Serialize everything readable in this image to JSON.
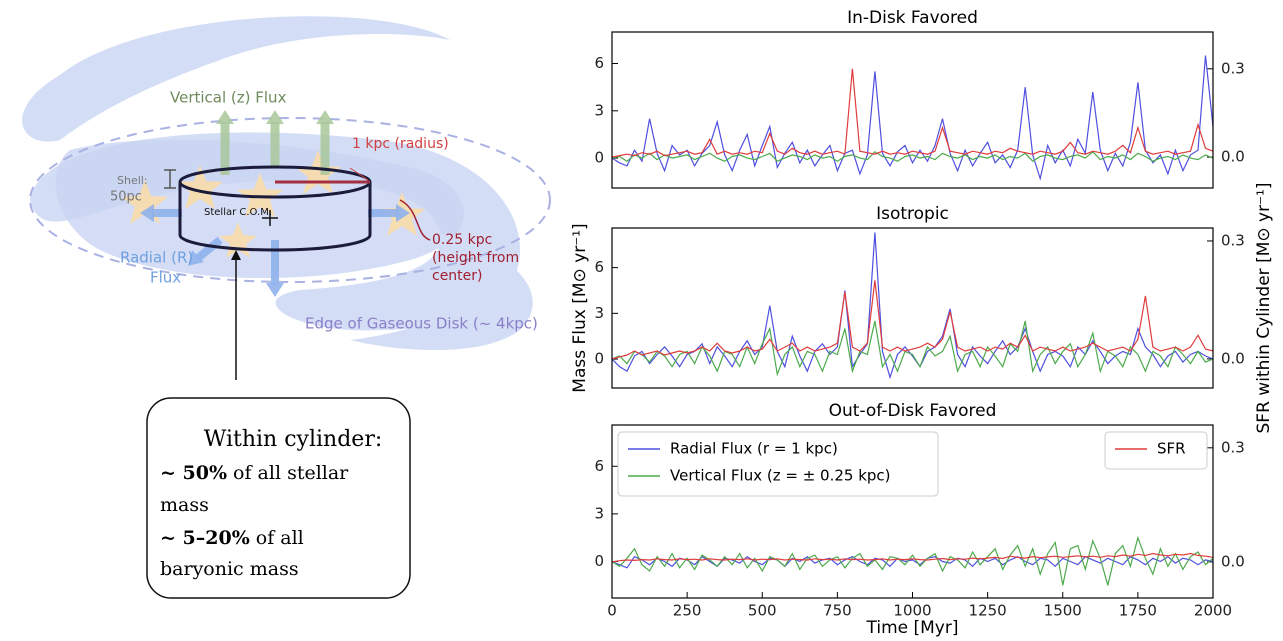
{
  "diagram": {
    "vertical_flux": "Vertical (z) Flux",
    "radius": "1 kpc (radius)",
    "shell": [
      "Shell:",
      "50pc"
    ],
    "com": "Stellar C.O.M.",
    "radial_flux": [
      "Radial (R)",
      "Flux"
    ],
    "height": [
      "0.25 kpc",
      "(height from",
      "center)"
    ],
    "edge": "Edge of Gaseous Disk (~ 4kpc)",
    "box": {
      "title": "Within cylinder:",
      "line1_bold": "~ 50%",
      "line1": "of all stellar",
      "line2": "mass",
      "line3_bold": "~ 5–20%",
      "line3": "of all",
      "line4": "baryonic mass"
    }
  },
  "chart_data": [
    {
      "type": "line",
      "title": "In-Disk Favored",
      "x": [
        0,
        25,
        50,
        75,
        100,
        125,
        150,
        175,
        200,
        225,
        250,
        275,
        300,
        325,
        350,
        375,
        400,
        425,
        450,
        475,
        500,
        525,
        550,
        575,
        600,
        625,
        650,
        675,
        700,
        725,
        750,
        775,
        800,
        825,
        850,
        875,
        900,
        925,
        950,
        975,
        1000,
        1025,
        1050,
        1075,
        1100,
        1125,
        1150,
        1175,
        1200,
        1225,
        1250,
        1275,
        1300,
        1325,
        1350,
        1375,
        1400,
        1425,
        1450,
        1475,
        1500,
        1525,
        1550,
        1575,
        1600,
        1625,
        1650,
        1675,
        1700,
        1725,
        1750,
        1775,
        1800,
        1825,
        1850,
        1875,
        1900,
        1925,
        1950,
        1975,
        2000
      ],
      "xlim": [
        0,
        2000
      ],
      "ylim": [
        -1.9,
        8.0
      ],
      "yticks": [
        0,
        3,
        6
      ],
      "y2lim": [
        -0.105,
        0.425
      ],
      "y2ticks": [
        {
          "value": 0,
          "label": "0.0"
        },
        0.3
      ],
      "series": [
        {
          "color": "#4f4fe0",
          "values": [
            0,
            -0.3,
            -0.5,
            0.5,
            -0.2,
            2.5,
            0.3,
            -0.8,
            0.8,
            0.2,
            0.5,
            -0.5,
            0.3,
            0.8,
            2.3,
            0.2,
            -0.8,
            0.5,
            1.5,
            -0.5,
            0.8,
            2.0,
            -0.6,
            0.3,
            1.0,
            -0.3,
            0.5,
            -0.5,
            0.2,
            0.8,
            -0.8,
            0.3,
            0.5,
            -1.0,
            0.2,
            5.5,
            0.3,
            -0.5,
            0.4,
            0.8,
            -0.3,
            0.5,
            -0.2,
            0.8,
            2.5,
            0.3,
            -0.8,
            0.5,
            -0.5,
            0.3,
            1.0,
            -0.3,
            0.2,
            -0.6,
            0.5,
            4.5,
            0.2,
            -1.3,
            0.8,
            -0.3,
            0.5,
            -0.5,
            1.2,
            0.3,
            4.2,
            0.5,
            -0.8,
            0.3,
            -0.5,
            1.0,
            4.8,
            0.5,
            -0.3,
            0.2,
            -1.0,
            0.5,
            -0.8,
            0.2,
            0.5,
            6.5,
            2.0
          ]
        },
        {
          "color": "#4caa4c",
          "values": [
            0,
            0.1,
            -0.2,
            0.2,
            0,
            0.3,
            -0.1,
            0.2,
            0,
            0.1,
            0.2,
            -0.1,
            0.1,
            0.3,
            0,
            -0.2,
            0.1,
            0.2,
            0,
            -0.1,
            0.1,
            0.3,
            -0.2,
            0,
            0.2,
            0.1,
            -0.1,
            0.2,
            0,
            0.1,
            -0.2,
            0.1,
            0.2,
            0,
            -0.1,
            0.4,
            0.1,
            0,
            -0.2,
            0.1,
            0.2,
            0,
            0.1,
            -0.1,
            0.3,
            0.1,
            0,
            0.2,
            -0.1,
            0.1,
            0,
            0.2,
            -0.1,
            0.1,
            0,
            0.3,
            -0.2,
            0.1,
            0.2,
            0,
            -0.1,
            0.1,
            0.2,
            0,
            0.4,
            -0.1,
            0.1,
            0,
            0.2,
            -0.1,
            0.3,
            0.1,
            -0.2,
            0,
            0.1,
            -0.1,
            0.2,
            0,
            -0.1,
            0.2,
            0
          ]
        },
        {
          "color": "#e03c3c",
          "axis": "y2",
          "values": [
            0,
            0.005,
            0.01,
            0.005,
            0.015,
            0.01,
            0.02,
            0.005,
            0.01,
            0.015,
            0.02,
            0.01,
            0.015,
            0.06,
            0.01,
            0.02,
            0.01,
            0.015,
            0.01,
            0.02,
            0.015,
            0.08,
            0.02,
            0.01,
            0.03,
            0.015,
            0.01,
            0.02,
            0.01,
            0.015,
            0.02,
            0.01,
            0.3,
            0.02,
            0.015,
            0.01,
            0.02,
            0.01,
            0.015,
            0.01,
            0.02,
            0.015,
            0.01,
            0.02,
            0.1,
            0.02,
            0.015,
            0.01,
            0.02,
            0.015,
            0.01,
            0.02,
            0.015,
            0.03,
            0.02,
            0.015,
            0.01,
            0.02,
            0.015,
            0.01,
            0.02,
            0.05,
            0.015,
            0.01,
            0.02,
            0.015,
            0.01,
            0.02,
            0.04,
            0.015,
            0.1,
            0.02,
            0.01,
            0.015,
            0.02,
            0.01,
            0.015,
            0.02,
            0.11,
            0.03,
            0.02
          ]
        }
      ]
    },
    {
      "type": "line",
      "title": "Isotropic",
      "ylabel": "Mass Flux [M⊙ yr⁻¹]",
      "y2label": "SFR within Cylinder [M⊙ yr⁻¹]",
      "x": [
        0,
        25,
        50,
        75,
        100,
        125,
        150,
        175,
        200,
        225,
        250,
        275,
        300,
        325,
        350,
        375,
        400,
        425,
        450,
        475,
        500,
        525,
        550,
        575,
        600,
        625,
        650,
        675,
        700,
        725,
        750,
        775,
        800,
        825,
        850,
        875,
        900,
        925,
        950,
        975,
        1000,
        1025,
        1050,
        1075,
        1100,
        1125,
        1150,
        1175,
        1200,
        1225,
        1250,
        1275,
        1300,
        1325,
        1350,
        1375,
        1400,
        1425,
        1450,
        1475,
        1500,
        1525,
        1550,
        1575,
        1600,
        1625,
        1650,
        1675,
        1700,
        1725,
        1750,
        1775,
        1800,
        1825,
        1850,
        1875,
        1900,
        1925,
        1950,
        1975,
        2000
      ],
      "xlim": [
        0,
        2000
      ],
      "ylim": [
        -1.9,
        8.6
      ],
      "yticks": [
        0,
        3,
        6
      ],
      "y2lim": [
        -0.074,
        0.333
      ],
      "y2ticks": [
        {
          "value": 0,
          "label": "0.0"
        },
        0.3
      ],
      "series": [
        {
          "color": "#4f4fe0",
          "values": [
            0,
            -0.5,
            -0.8,
            0.2,
            0.5,
            -0.3,
            0.3,
            0.8,
            0.2,
            -0.5,
            0.3,
            0.5,
            1.0,
            -0.3,
            0.8,
            0.2,
            -0.5,
            0.5,
            1.2,
            0.3,
            0.8,
            3.5,
            0.5,
            -0.5,
            1.5,
            0.2,
            -0.8,
            0.5,
            1.0,
            0.3,
            0.8,
            4.5,
            -0.5,
            0.3,
            1.0,
            8.3,
            0.5,
            -1.2,
            0.3,
            0.8,
            0.2,
            -0.5,
            0.5,
            0.8,
            1.5,
            3.3,
            0.3,
            -0.5,
            0.8,
            0.2,
            -0.3,
            0.5,
            1.2,
            0.3,
            0.8,
            2.0,
            0.5,
            -0.8,
            0.3,
            0.5,
            0.2,
            -0.5,
            0.8,
            0.3,
            1.2,
            0.5,
            -0.3,
            0.2,
            0.5,
            0.3,
            2.0,
            0.8,
            0.3,
            -0.5,
            0.2,
            0.5,
            -0.2,
            0.3,
            0.5,
            0.2,
            0
          ]
        },
        {
          "color": "#4caa4c",
          "values": [
            0,
            0.2,
            -0.3,
            0.5,
            0.3,
            -0.2,
            0.5,
            0.2,
            -0.5,
            0.3,
            0.5,
            -0.3,
            0.8,
            0.2,
            -0.8,
            0.5,
            0.3,
            -0.5,
            0.8,
            -0.3,
            1.0,
            2.0,
            -1.0,
            0.3,
            0.8,
            -0.5,
            0.5,
            0.3,
            -0.8,
            0.5,
            0.3,
            2.0,
            -0.8,
            0.5,
            0.3,
            2.5,
            -0.5,
            0.3,
            -0.8,
            0.5,
            0.3,
            -0.5,
            0.8,
            0.2,
            0.5,
            1.5,
            -0.8,
            0.3,
            0.5,
            -0.5,
            0.8,
            0.2,
            -0.5,
            1.0,
            0.5,
            2.5,
            -0.8,
            0.3,
            0.8,
            -0.3,
            0.5,
            1.0,
            -0.5,
            0.3,
            1.7,
            -0.8,
            0.5,
            0.2,
            -0.5,
            0.8,
            0.3,
            -0.8,
            0.5,
            0.2,
            -0.5,
            0.8,
            0.3,
            -0.3,
            0.5,
            -0.2,
            0
          ]
        },
        {
          "color": "#e03c3c",
          "axis": "y2",
          "values": [
            0,
            0.005,
            0.01,
            0.02,
            0.01,
            0.015,
            0.02,
            0.01,
            0.015,
            0.02,
            0.015,
            0.02,
            0.03,
            0.02,
            0.04,
            0.02,
            0.015,
            0.02,
            0.03,
            0.02,
            0.025,
            0.05,
            0.02,
            0.03,
            0.04,
            0.02,
            0.03,
            0.02,
            0.025,
            0.03,
            0.04,
            0.17,
            0.03,
            0.02,
            0.04,
            0.2,
            0.03,
            0.02,
            0.03,
            0.02,
            0.025,
            0.03,
            0.04,
            0.03,
            0.05,
            0.12,
            0.03,
            0.02,
            0.025,
            0.03,
            0.02,
            0.03,
            0.025,
            0.04,
            0.03,
            0.06,
            0.02,
            0.03,
            0.025,
            0.02,
            0.03,
            0.02,
            0.025,
            0.03,
            0.04,
            0.03,
            0.02,
            0.025,
            0.03,
            0.02,
            0.05,
            0.16,
            0.03,
            0.02,
            0.025,
            0.03,
            0.02,
            0.03,
            0.06,
            0.025,
            0.02
          ]
        }
      ]
    },
    {
      "type": "line",
      "title": "Out-of-Disk Favored",
      "xlabel": "Time [Myr]",
      "legend": true,
      "x": [
        0,
        25,
        50,
        75,
        100,
        125,
        150,
        175,
        200,
        225,
        250,
        275,
        300,
        325,
        350,
        375,
        400,
        425,
        450,
        475,
        500,
        525,
        550,
        575,
        600,
        625,
        650,
        675,
        700,
        725,
        750,
        775,
        800,
        825,
        850,
        875,
        900,
        925,
        950,
        975,
        1000,
        1025,
        1050,
        1075,
        1100,
        1125,
        1150,
        1175,
        1200,
        1225,
        1250,
        1275,
        1300,
        1325,
        1350,
        1375,
        1400,
        1425,
        1450,
        1475,
        1500,
        1525,
        1550,
        1575,
        1600,
        1625,
        1650,
        1675,
        1700,
        1725,
        1750,
        1775,
        1800,
        1825,
        1850,
        1875,
        1900,
        1925,
        1950,
        1975,
        2000
      ],
      "xlim": [
        0,
        2000
      ],
      "xticks": [
        0,
        250,
        500,
        750,
        1000,
        1250,
        1500,
        1750,
        2000
      ],
      "ylim": [
        -2.3,
        8.6
      ],
      "yticks": [
        0,
        3,
        6
      ],
      "y2lim": [
        -0.095,
        0.36
      ],
      "y2ticks": [
        {
          "value": 0,
          "label": "0.0"
        },
        0.3
      ],
      "series": [
        {
          "name": "Radial Flux (r = 1 kpc)",
          "color": "#4f4fe0",
          "values": [
            0,
            -0.2,
            -0.4,
            0.3,
            0.1,
            -0.2,
            0.2,
            0,
            -0.3,
            0.2,
            0.1,
            -0.2,
            0.3,
            0,
            -0.3,
            0.2,
            0.1,
            -0.1,
            0.3,
            0,
            -0.2,
            0.2,
            0.1,
            -0.3,
            0.2,
            0,
            0.3,
            -0.1,
            0.1,
            0.2,
            -0.2,
            0.1,
            0.3,
            0,
            -0.2,
            0.2,
            0.1,
            -0.3,
            0.2,
            0,
            0.1,
            -0.2,
            0.2,
            0.3,
            0,
            -0.1,
            0.2,
            0.1,
            -0.3,
            0.2,
            0,
            0.2,
            -0.2,
            0.1,
            0.3,
            0,
            -0.2,
            0.2,
            0.1,
            -0.3,
            0.2,
            0,
            -0.2,
            0.3,
            0.1,
            -0.1,
            0.2,
            0,
            -0.2,
            0.3,
            0.1,
            -0.2,
            0.2,
            0,
            0.3,
            -0.1,
            0.2,
            0.1,
            -0.2,
            0.1,
            0
          ]
        },
        {
          "name": "Vertical Flux (z = ± 0.25 kpc)",
          "color": "#4caa4c",
          "values": [
            0,
            -0.3,
            0.2,
            0.8,
            -0.2,
            -0.6,
            0.3,
            -0.3,
            0.5,
            -0.4,
            0.2,
            -0.5,
            0.4,
            0.1,
            -0.3,
            0.3,
            -0.2,
            0.5,
            -0.4,
            0.2,
            -0.6,
            0.3,
            0.1,
            -0.3,
            0.5,
            -0.5,
            0.2,
            0.4,
            -0.3,
            0.1,
            0.3,
            -0.4,
            0.2,
            0.5,
            -0.3,
            0.1,
            -0.5,
            0.3,
            0.2,
            -0.2,
            0.4,
            -0.3,
            0.2,
            0.5,
            -0.6,
            0.3,
            0.1,
            -0.4,
            0.6,
            -0.2,
            0.3,
            0.8,
            -0.5,
            0.4,
            1.0,
            -0.3,
            0.8,
            -0.8,
            0.5,
            1.2,
            -1.5,
            0.8,
            1.0,
            -0.5,
            1.3,
            0.2,
            -1.5,
            0.5,
            1.0,
            -0.3,
            1.5,
            0.2,
            -0.8,
            0.8,
            -0.3,
            0.5,
            -0.5,
            0.3,
            0.6,
            -0.2,
            0.2
          ]
        },
        {
          "name": "SFR",
          "color": "#e03c3c",
          "axis": "y2",
          "values": [
            0,
            0.003,
            0.005,
            0.004,
            0.006,
            0.005,
            0.008,
            0.006,
            0.005,
            0.008,
            0.006,
            0.007,
            0.005,
            0.008,
            0.006,
            0.005,
            0.007,
            0.006,
            0.008,
            0.005,
            0.007,
            0.006,
            0.008,
            0.005,
            0.007,
            0.006,
            0.005,
            0.008,
            0.006,
            0.007,
            0.005,
            0.008,
            0.006,
            0.007,
            0.005,
            0.006,
            0.008,
            0.005,
            0.007,
            0.006,
            0.008,
            0.006,
            0.005,
            0.007,
            0.009,
            0.006,
            0.008,
            0.007,
            0.01,
            0.008,
            0.01,
            0.012,
            0.009,
            0.015,
            0.012,
            0.01,
            0.014,
            0.011,
            0.013,
            0.015,
            0.012,
            0.014,
            0.016,
            0.013,
            0.015,
            0.012,
            0.016,
            0.014,
            0.018,
            0.015,
            0.02,
            0.017,
            0.022,
            0.018,
            0.016,
            0.02,
            0.018,
            0.022,
            0.017,
            0.015,
            0.012
          ]
        }
      ]
    }
  ]
}
